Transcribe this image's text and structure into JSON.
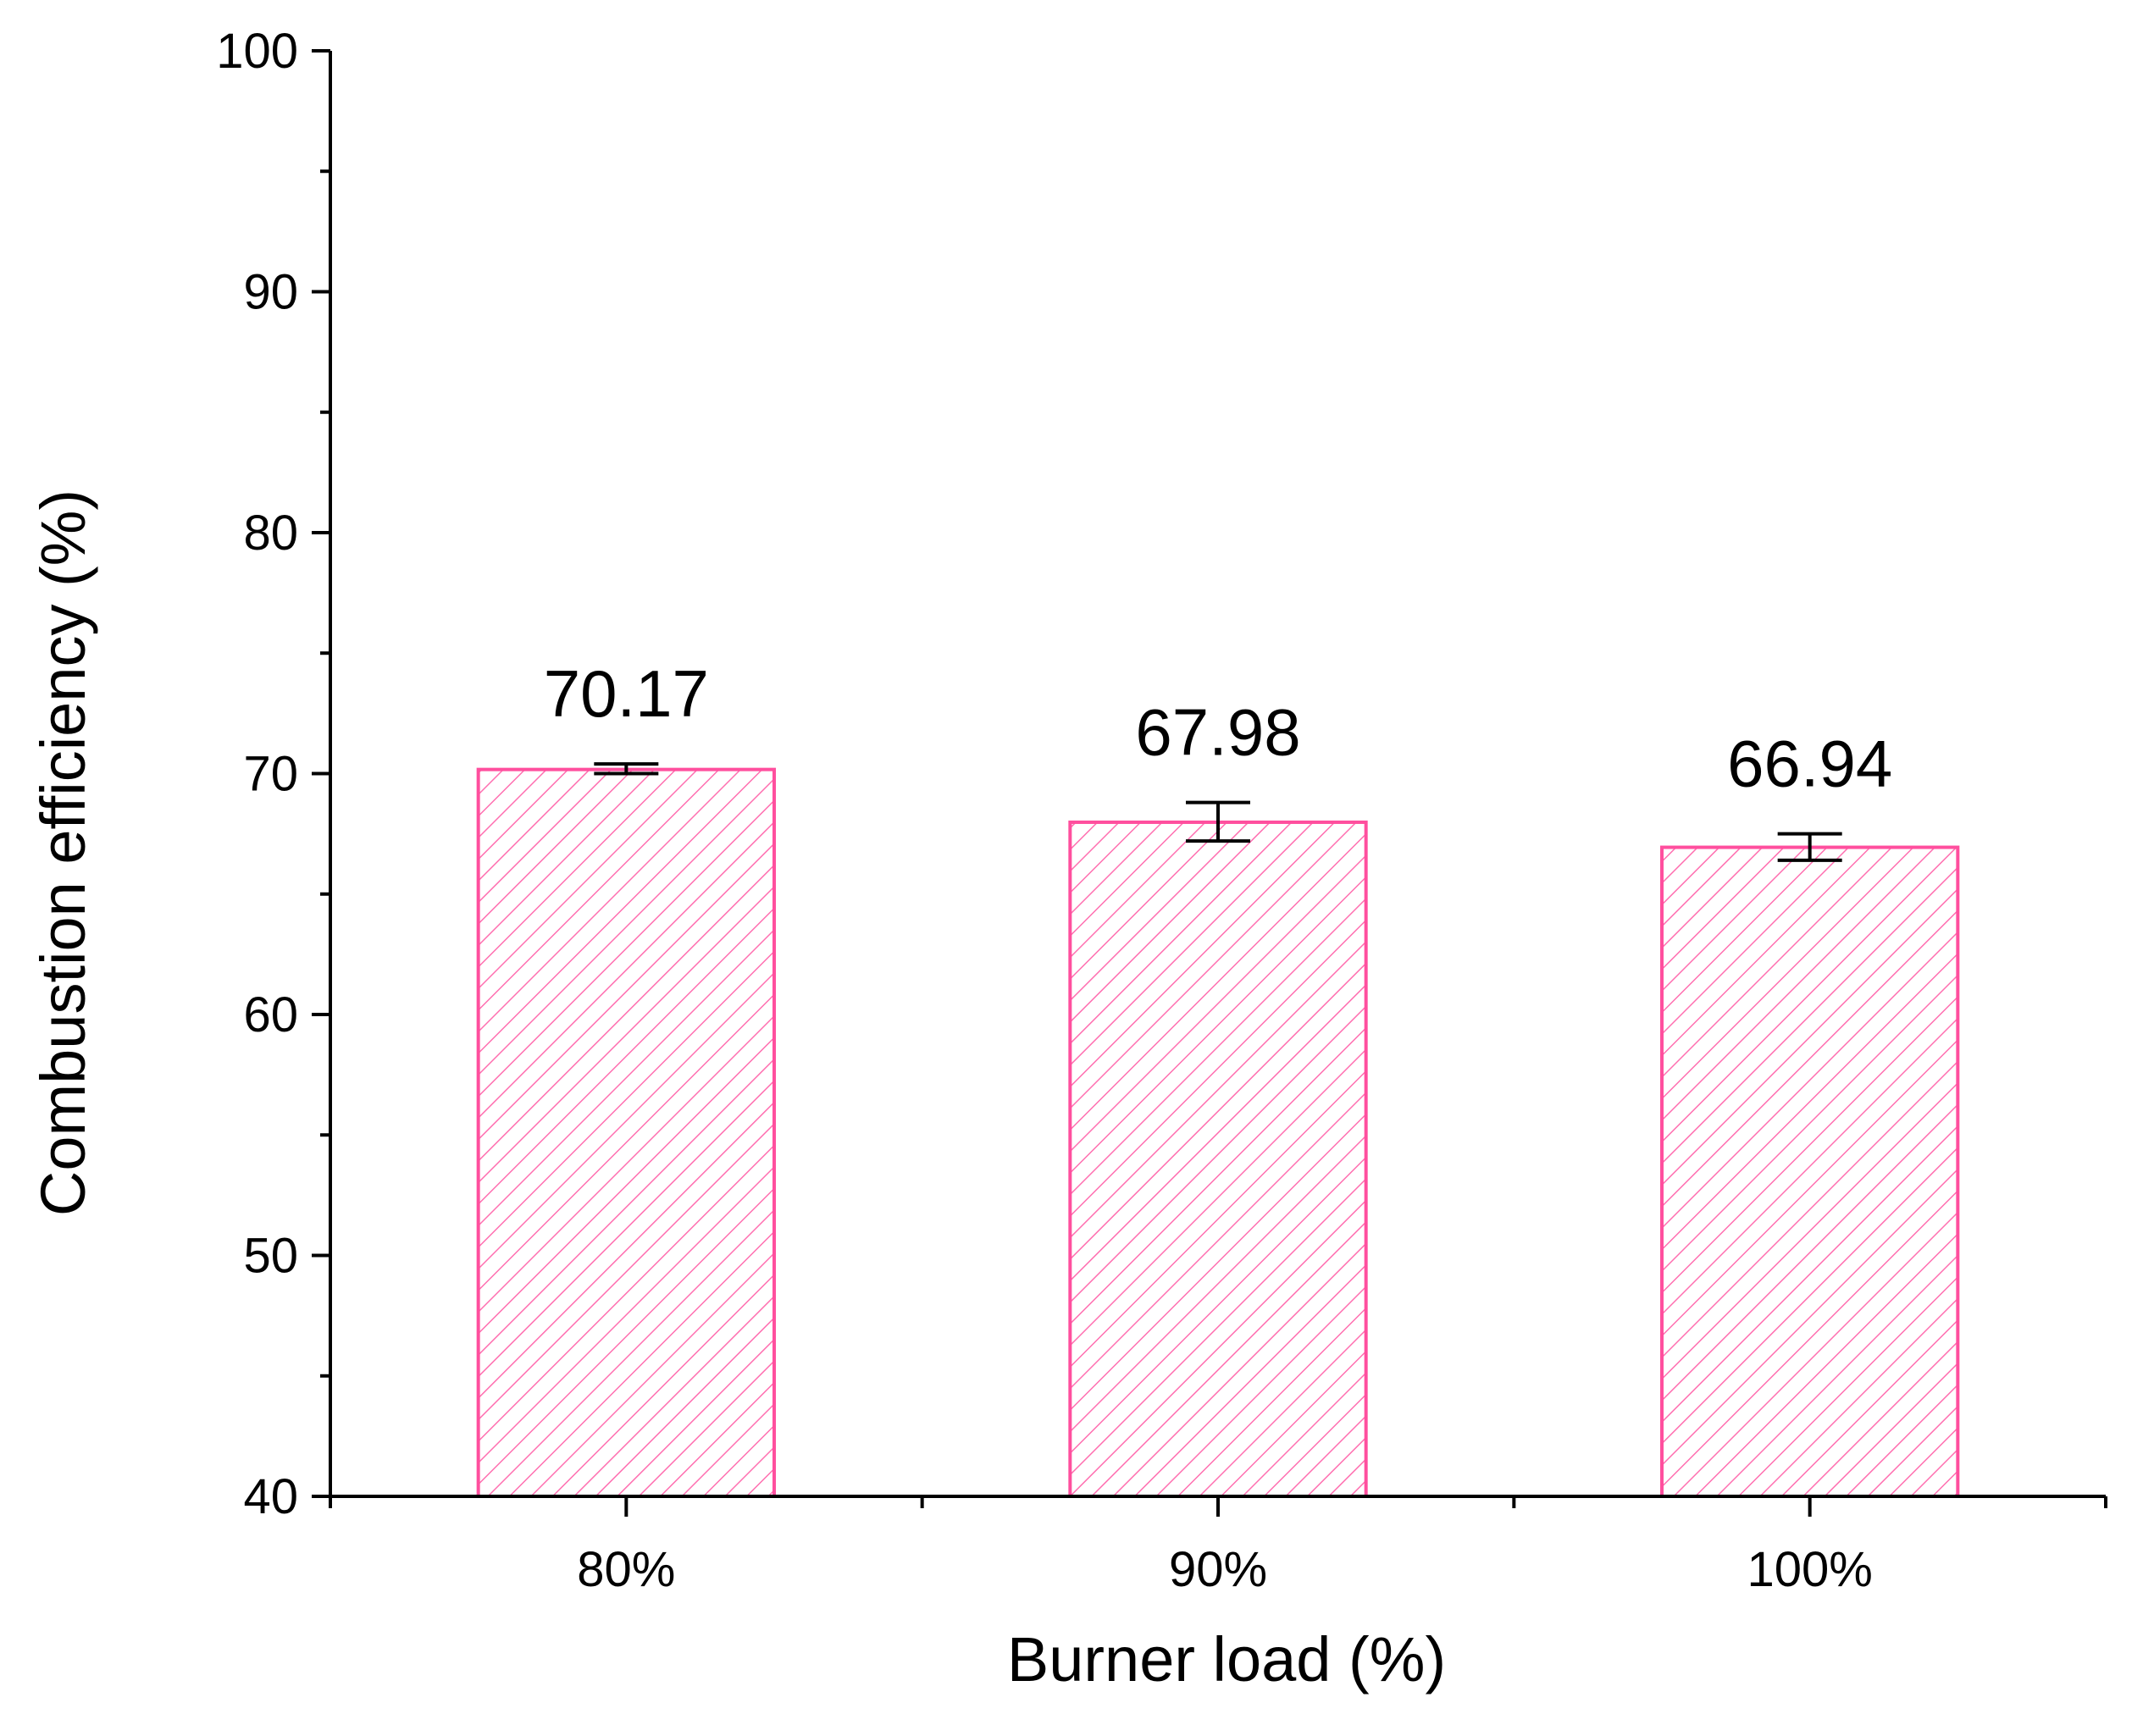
{
  "chart_data": {
    "type": "bar",
    "xlabel": "Burner load (%)",
    "ylabel": "Combustion efficiency (%)",
    "categories": [
      "80%",
      "90%",
      "100%"
    ],
    "values": [
      70.17,
      67.98,
      66.94
    ],
    "value_labels": [
      "70.17",
      "67.98",
      "66.94"
    ],
    "error_low": [
      70.0,
      67.2,
      66.4
    ],
    "error_high": [
      70.4,
      68.8,
      67.5
    ],
    "ylim": [
      40,
      100
    ],
    "y_major_ticks": [
      40,
      50,
      60,
      70,
      80,
      90,
      100
    ],
    "y_tick_labels": [
      "40",
      "50",
      "60",
      "70",
      "80",
      "90",
      "100"
    ],
    "y_minor_step": 5,
    "grid": false,
    "legend": "none",
    "bar_style": "hatched",
    "colors": {
      "bar_edge": "#ff4f9e",
      "bar_hatch": "#ff6fb0",
      "axis": "#000000",
      "text": "#000000"
    }
  }
}
